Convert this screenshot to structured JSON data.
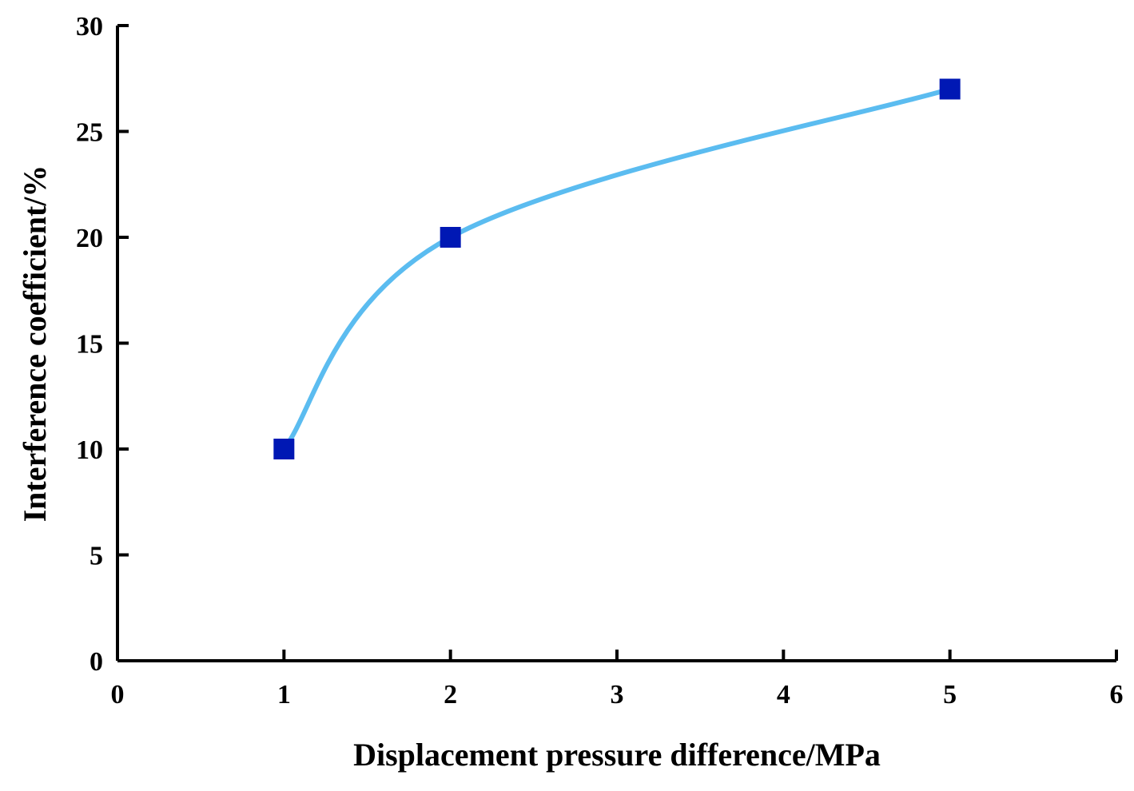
{
  "chart_data": {
    "type": "line",
    "xlabel": "Displacement pressure difference/MPa",
    "ylabel": "Interference coefficient/%",
    "xlim": [
      0,
      6
    ],
    "ylim": [
      0,
      30
    ],
    "x_ticks": [
      0,
      1,
      2,
      3,
      4,
      5,
      6
    ],
    "y_ticks": [
      0,
      5,
      10,
      15,
      20,
      25,
      30
    ],
    "x_tick_labels": [
      "0",
      "1",
      "2",
      "3",
      "4",
      "5",
      "6"
    ],
    "y_tick_labels": [
      "0",
      "5",
      "10",
      "15",
      "20",
      "25",
      "30"
    ],
    "grid": false,
    "legend": "none",
    "series": [
      {
        "x": [
          1,
          2,
          5
        ],
        "y": [
          10,
          20,
          27
        ],
        "marker": "square",
        "marker_color": "#0018b4",
        "line_color": "#5bbcf0",
        "smooth": true
      }
    ]
  }
}
